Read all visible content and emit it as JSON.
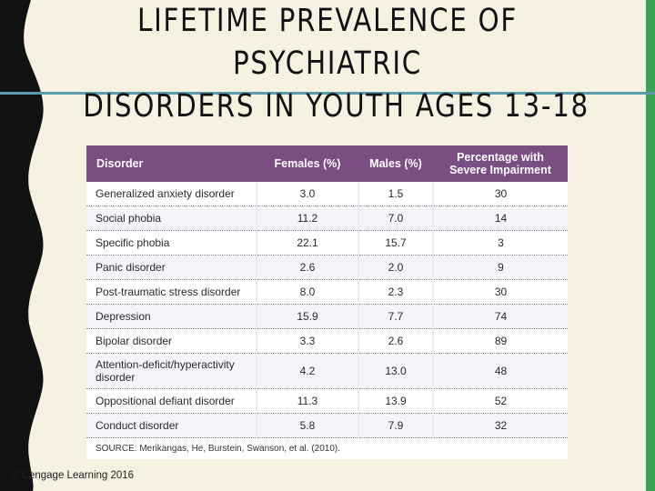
{
  "slide": {
    "title_lines": [
      "LIFETIME PREVALENCE OF",
      "PSYCHIATRIC",
      "DISORDERS IN YOUTH AGES 13-18"
    ],
    "copyright": "© Cengage Learning 2016",
    "colors": {
      "background": "#f6f1e1",
      "header": "#7a4d83",
      "accent_bar": "#3fa058",
      "rule": "#5b9bb0",
      "left_band": "#111111"
    }
  },
  "table": {
    "headers": [
      "Disorder",
      "Females (%)",
      "Males (%)",
      "Percentage with Severe Impairment"
    ],
    "rows": [
      [
        "Generalized anxiety disorder",
        "3.0",
        "1.5",
        "30"
      ],
      [
        "Social phobia",
        "11.2",
        "7.0",
        "14"
      ],
      [
        "Specific phobia",
        "22.1",
        "15.7",
        "3"
      ],
      [
        "Panic disorder",
        "2.6",
        "2.0",
        "9"
      ],
      [
        "Post-traumatic stress disorder",
        "8.0",
        "2.3",
        "30"
      ],
      [
        "Depression",
        "15.9",
        "7.7",
        "74"
      ],
      [
        "Bipolar disorder",
        "3.3",
        "2.6",
        "89"
      ],
      [
        "Attention-deficit/hyperactivity disorder",
        "4.2",
        "13.0",
        "48"
      ],
      [
        "Oppositional defiant disorder",
        "11.3",
        "13.9",
        "52"
      ],
      [
        "Conduct disorder",
        "5.8",
        "7.9",
        "32"
      ]
    ],
    "source": "SOURCE: Merikangas, He, Burstein, Swanson, et al. (2010)."
  }
}
